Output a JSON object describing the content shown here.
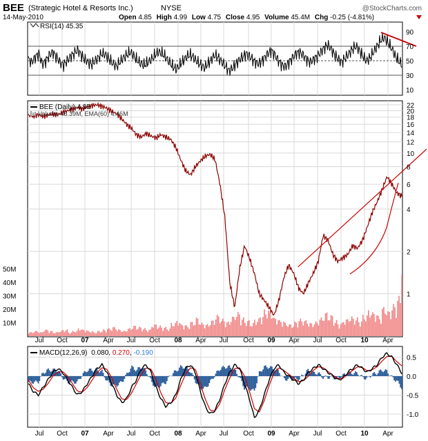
{
  "header": {
    "ticker": "BEE",
    "company": "(Strategic Hotel & Resorts Inc.)",
    "exchange": "NYSE",
    "watermark": "@StockCharts.com",
    "date": "14-May-2010",
    "open_label": "Open",
    "open": "4.85",
    "high_label": "High",
    "high": "4.99",
    "low_label": "Low",
    "low": "4.75",
    "close_label": "Close",
    "close": "4.95",
    "volume_label": "Volume",
    "volume": "45.4M",
    "chg_label": "Chg",
    "chg": "-0.25 (-4.81%)",
    "down_color": "#cc0000"
  },
  "chart_data": [
    {
      "type": "line",
      "panel": "rsi",
      "legend": "RSI(14) 45.35",
      "yticks": [
        "90",
        "70",
        "50",
        "30",
        "10"
      ],
      "ylim": [
        10,
        90
      ],
      "reference_lines": [
        30,
        50,
        70
      ],
      "series": [
        {
          "name": "RSI(14)",
          "values": [
            52,
            48,
            55,
            60,
            45,
            50,
            58,
            62,
            55,
            48,
            44,
            50,
            56,
            60,
            65,
            58,
            52,
            48,
            45,
            50,
            55,
            60,
            58,
            52,
            46,
            42,
            48,
            54,
            58,
            62,
            56,
            50,
            46,
            44,
            48,
            52,
            58,
            62,
            60,
            55,
            48,
            42,
            38,
            44,
            50,
            56,
            58,
            54,
            48,
            44,
            40,
            46,
            52,
            58,
            54,
            48,
            42,
            36,
            40,
            46,
            52,
            56,
            60,
            55,
            50,
            46,
            48,
            54,
            60,
            64,
            58,
            50,
            44,
            42,
            48,
            54,
            60,
            62,
            58,
            52,
            48,
            52,
            56,
            62,
            68,
            72,
            66,
            58,
            52,
            48,
            54,
            60,
            66,
            70,
            64,
            56,
            50,
            54,
            62,
            70,
            78,
            82,
            76,
            68,
            58,
            50,
            45
          ]
        }
      ]
    },
    {
      "type": "line",
      "panel": "price",
      "legend": "BEE (Daily) 4.95",
      "legend2": "Volume 45.39M, EMA(60) 4.46M",
      "yscale": "log",
      "yticks": [
        "22",
        "20",
        "18",
        "16",
        "14",
        "12",
        "10",
        "8",
        "6",
        "4",
        "2",
        "1"
      ],
      "volume_ticks": [
        "50M",
        "40M",
        "30M",
        "20M",
        "10M"
      ],
      "x_ticks": [
        "Jul",
        "Oct",
        "07",
        "Apr",
        "Jul",
        "Oct",
        "08",
        "Apr",
        "Jul",
        "Oct",
        "09",
        "Apr",
        "Jul",
        "Oct",
        "10",
        "Apr"
      ],
      "series": [
        {
          "name": "BEE",
          "values": [
            18.5,
            18.3,
            18.8,
            18.2,
            18.6,
            19.0,
            18.7,
            19.4,
            20.0,
            20.5,
            21.0,
            20.6,
            21.2,
            21.8,
            22.0,
            21.5,
            20.8,
            19.8,
            19.0,
            17.5,
            16.0,
            15.0,
            13.5,
            13.0,
            13.8,
            13.2,
            12.8,
            13.5,
            13.0,
            12.5,
            11.0,
            9.0,
            7.5,
            7.0,
            8.0,
            8.8,
            9.5,
            9.8,
            9.0,
            6.0,
            3.5,
            1.2,
            0.8,
            1.5,
            2.2,
            1.8,
            1.4,
            1.0,
            0.9,
            0.8,
            0.7,
            0.9,
            1.3,
            1.6,
            1.4,
            1.1,
            1.0,
            1.2,
            1.4,
            1.7,
            2.6,
            2.4,
            1.9,
            1.7,
            1.8,
            1.9,
            2.2,
            2.1,
            2.4,
            3.0,
            3.8,
            4.5,
            5.5,
            6.8,
            6.0,
            5.2,
            4.95
          ]
        }
      ],
      "volume": [
        3,
        4,
        3,
        5,
        4,
        3,
        4,
        5,
        3,
        4,
        6,
        5,
        4,
        3,
        4,
        5,
        6,
        7,
        5,
        4,
        6,
        8,
        7,
        6,
        5,
        9,
        8,
        7,
        6,
        10,
        12,
        9,
        8,
        11,
        14,
        10,
        9,
        12,
        16,
        13,
        11,
        15,
        18,
        14,
        12,
        10,
        13,
        16,
        20,
        18,
        14,
        12,
        10,
        9,
        11,
        13,
        12,
        10,
        11,
        14,
        18,
        16,
        12,
        10,
        13,
        15,
        14,
        12,
        16,
        20,
        18,
        15,
        22,
        19,
        24,
        30,
        45.4
      ],
      "trendlines": [
        {
          "from": [
            0.722,
            1.55
          ],
          "to": [
            1.0,
            12.0
          ],
          "color": "#cc0000"
        },
        {
          "from": [
            0.826,
            1.5
          ],
          "to": [
            0.936,
            6.8
          ],
          "color": "#cc0000"
        }
      ]
    },
    {
      "type": "line",
      "panel": "macd",
      "legend_name": "MACD(12,26,9)",
      "macd_value": "0.080",
      "signal_value": "0.270",
      "hist_value": "-0.190",
      "yticks": [
        "0.5",
        "0.0",
        "-0.5",
        "-1.0"
      ],
      "ylim": [
        -1.2,
        0.7
      ],
      "x_ticks": [
        "Jul",
        "Oct",
        "07",
        "Apr",
        "Jul",
        "Oct",
        "08",
        "Apr",
        "Jul",
        "Oct",
        "09",
        "Apr",
        "Jul",
        "Oct",
        "10",
        "Apr"
      ],
      "series": [
        {
          "name": "MACD",
          "values": [
            -0.2,
            -0.4,
            -0.5,
            -0.3,
            -0.1,
            0.1,
            0.2,
            0.1,
            -0.1,
            -0.3,
            -0.5,
            -0.4,
            -0.2,
            0.0,
            0.2,
            0.3,
            0.1,
            -0.2,
            -0.5,
            -0.7,
            -0.6,
            -0.3,
            -0.1,
            0.2,
            0.3,
            0.1,
            -0.3,
            -0.6,
            -0.8,
            -0.7,
            -0.5,
            -0.1,
            0.2,
            0.3,
            0.1,
            -0.4,
            -0.8,
            -1.0,
            -0.9,
            -0.6,
            -0.2,
            0.1,
            0.3,
            0.2,
            -0.2,
            -0.6,
            -1.1,
            -0.9,
            -0.5,
            -0.1,
            0.2,
            0.3,
            0.1,
            0.0,
            -0.1,
            -0.2,
            -0.1,
            0.1,
            0.2,
            0.3,
            0.2,
            0.1,
            0.0,
            -0.1,
            -0.05,
            0.1,
            0.2,
            0.3,
            0.2,
            0.1,
            0.2,
            0.3,
            0.5,
            0.6,
            0.5,
            0.3,
            0.08
          ]
        },
        {
          "name": "Signal",
          "values": [
            -0.1,
            -0.3,
            -0.4,
            -0.35,
            -0.2,
            0.0,
            0.1,
            0.12,
            0.0,
            -0.2,
            -0.4,
            -0.42,
            -0.3,
            -0.1,
            0.1,
            0.22,
            0.18,
            -0.05,
            -0.35,
            -0.6,
            -0.62,
            -0.45,
            -0.2,
            0.05,
            0.22,
            0.18,
            -0.1,
            -0.45,
            -0.7,
            -0.72,
            -0.58,
            -0.25,
            0.05,
            0.22,
            0.18,
            -0.2,
            -0.6,
            -0.9,
            -0.92,
            -0.72,
            -0.35,
            -0.05,
            0.2,
            0.22,
            0.0,
            -0.4,
            -0.85,
            -0.95,
            -0.65,
            -0.25,
            0.08,
            0.22,
            0.15,
            0.05,
            -0.05,
            -0.15,
            -0.12,
            0.0,
            0.15,
            0.25,
            0.22,
            0.12,
            0.02,
            -0.06,
            -0.06,
            0.05,
            0.15,
            0.25,
            0.22,
            0.14,
            0.17,
            0.25,
            0.4,
            0.52,
            0.52,
            0.38,
            0.27
          ]
        }
      ]
    }
  ],
  "colors": {
    "price": "#8b0000",
    "volume": "#f08080",
    "macd": "#000000",
    "signal": "#cc0000",
    "histogram": "#2b5d9a",
    "hist_label": "#2b7fd0",
    "grid": "#d8d8d8",
    "trend": "#cc0000"
  }
}
